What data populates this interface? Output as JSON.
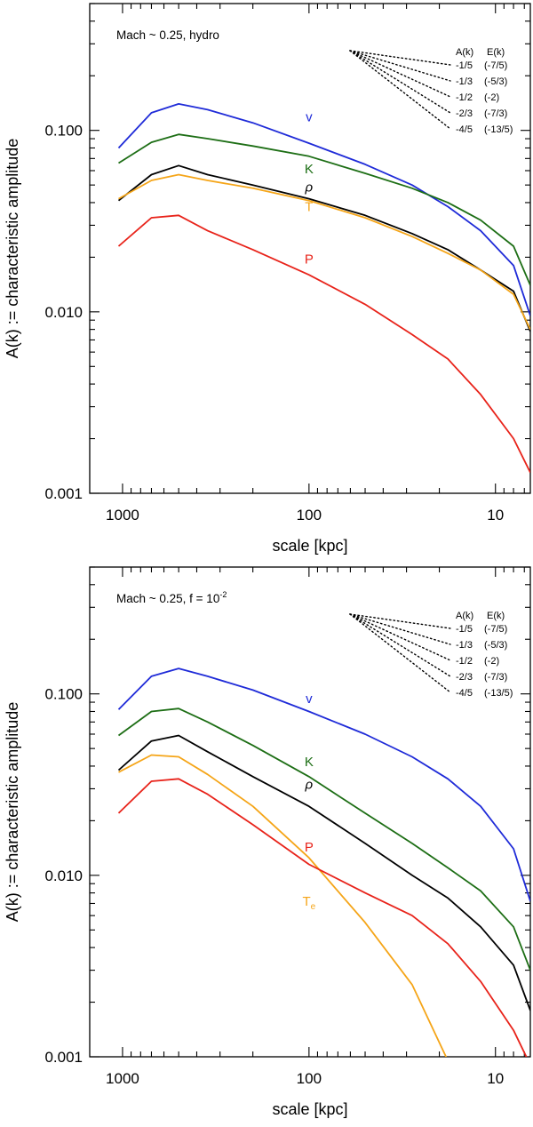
{
  "chart_data": [
    {
      "type": "line",
      "title": "",
      "annotation": {
        "main": "Mach ~ 0.25, hydro",
        "sup": ""
      },
      "xlabel": "scale [kpc]",
      "ylabel": "A(k) := characteristic amplitude",
      "xscale": "log",
      "yscale": "log",
      "xreversed": true,
      "xlim": [
        1500,
        6.5
      ],
      "ylim": [
        0.001,
        0.5
      ],
      "xticks": [
        {
          "v": 1000,
          "label": "1000"
        },
        {
          "v": 100,
          "label": "100"
        },
        {
          "v": 10,
          "label": "10"
        }
      ],
      "yticks": [
        {
          "v": 0.001,
          "label": "0.001"
        },
        {
          "v": 0.01,
          "label": "0.010"
        },
        {
          "v": 0.1,
          "label": "0.100"
        }
      ],
      "x": [
        1050,
        700,
        500,
        350,
        200,
        100,
        50,
        28,
        18,
        12,
        8,
        6.5
      ],
      "series": [
        {
          "name": "v",
          "label": "v",
          "sub": "",
          "color": "#1f2bd8",
          "label_at": [
            100,
            0.112
          ],
          "values": [
            0.08,
            0.125,
            0.14,
            0.13,
            0.11,
            0.085,
            0.065,
            0.05,
            0.038,
            0.028,
            0.018,
            0.0095
          ]
        },
        {
          "name": "K",
          "label": "K",
          "sub": "",
          "color": "#1d6e15",
          "label_at": [
            100,
            0.058
          ],
          "values": [
            0.066,
            0.086,
            0.095,
            0.09,
            0.082,
            0.072,
            0.058,
            0.048,
            0.04,
            0.032,
            0.023,
            0.014
          ]
        },
        {
          "name": "rho",
          "label": "ρ",
          "sub": "",
          "color": "#000000",
          "label_at": [
            100,
            0.046
          ],
          "values": [
            0.041,
            0.057,
            0.064,
            0.057,
            0.05,
            0.042,
            0.034,
            0.027,
            0.022,
            0.017,
            0.013,
            0.0078
          ]
        },
        {
          "name": "T",
          "label": "T",
          "sub": "",
          "color": "#f5a518",
          "label_at": [
            100,
            0.036
          ],
          "values": [
            0.042,
            0.053,
            0.057,
            0.053,
            0.048,
            0.041,
            0.033,
            0.026,
            0.021,
            0.017,
            0.0125,
            0.008
          ]
        },
        {
          "name": "P",
          "label": "P",
          "sub": "",
          "color": "#e8231a",
          "label_at": [
            100,
            0.0185
          ],
          "values": [
            0.023,
            0.033,
            0.034,
            0.028,
            0.022,
            0.016,
            0.011,
            0.0075,
            0.0055,
            0.0035,
            0.002,
            0.0013
          ]
        }
      ],
      "slope_guides": {
        "header_ak": "A(k)",
        "header_ek": "E(k)",
        "rows": [
          {
            "ak": "-1/5",
            "ek": "(-7/5)"
          },
          {
            "ak": "-1/3",
            "ek": "(-5/3)"
          },
          {
            "ak": "-1/2",
            "ek": "(-2)"
          },
          {
            "ak": "-2/3",
            "ek": "(-7/3)"
          },
          {
            "ak": "-4/5",
            "ek": "(-13/5)"
          }
        ]
      }
    },
    {
      "type": "line",
      "title": "",
      "annotation": {
        "main": "Mach ~ 0.25, f = 10",
        "sup": "-2"
      },
      "xlabel": "scale [kpc]",
      "ylabel": "A(k) := characteristic amplitude",
      "xscale": "log",
      "yscale": "log",
      "xreversed": true,
      "xlim": [
        1500,
        6.5
      ],
      "ylim": [
        0.001,
        0.5
      ],
      "xticks": [
        {
          "v": 1000,
          "label": "1000"
        },
        {
          "v": 100,
          "label": "100"
        },
        {
          "v": 10,
          "label": "10"
        }
      ],
      "yticks": [
        {
          "v": 0.001,
          "label": "0.001"
        },
        {
          "v": 0.01,
          "label": "0.010"
        },
        {
          "v": 0.1,
          "label": "0.100"
        }
      ],
      "x": [
        1050,
        700,
        500,
        350,
        200,
        100,
        50,
        28,
        18,
        12,
        8,
        6.5
      ],
      "series": [
        {
          "name": "v",
          "label": "v",
          "sub": "",
          "color": "#1f2bd8",
          "label_at": [
            100,
            0.089
          ],
          "values": [
            0.082,
            0.125,
            0.138,
            0.125,
            0.105,
            0.08,
            0.06,
            0.045,
            0.034,
            0.024,
            0.014,
            0.0072
          ]
        },
        {
          "name": "K",
          "label": "K",
          "sub": "",
          "color": "#1d6e15",
          "label_at": [
            100,
            0.04
          ],
          "values": [
            0.059,
            0.08,
            0.083,
            0.07,
            0.052,
            0.035,
            0.022,
            0.015,
            0.011,
            0.0082,
            0.0052,
            0.003
          ]
        },
        {
          "name": "rho",
          "label": "ρ",
          "sub": "",
          "color": "#000000",
          "label_at": [
            100,
            0.03
          ],
          "values": [
            0.038,
            0.055,
            0.059,
            0.048,
            0.035,
            0.024,
            0.015,
            0.01,
            0.0075,
            0.0052,
            0.0032,
            0.0018
          ]
        },
        {
          "name": "T",
          "label": "T",
          "sub": "e",
          "color": "#f5a518",
          "label_at": [
            100,
            0.0068
          ],
          "values": [
            0.037,
            0.046,
            0.045,
            0.036,
            0.024,
            0.0125,
            0.0055,
            0.0025,
            0.00095,
            null,
            null,
            null
          ]
        },
        {
          "name": "P",
          "label": "P",
          "sub": "",
          "color": "#e8231a",
          "label_at": [
            100,
            0.0135
          ],
          "values": [
            0.022,
            0.033,
            0.034,
            0.028,
            0.019,
            0.0115,
            0.008,
            0.006,
            0.0042,
            0.0026,
            0.0014,
            0.0009
          ]
        }
      ],
      "slope_guides": {
        "header_ak": "A(k)",
        "header_ek": "E(k)",
        "rows": [
          {
            "ak": "-1/5",
            "ek": "(-7/5)"
          },
          {
            "ak": "-1/3",
            "ek": "(-5/3)"
          },
          {
            "ak": "-1/2",
            "ek": "(-2)"
          },
          {
            "ak": "-2/3",
            "ek": "(-7/3)"
          },
          {
            "ak": "-4/5",
            "ek": "(-13/5)"
          }
        ]
      }
    }
  ]
}
